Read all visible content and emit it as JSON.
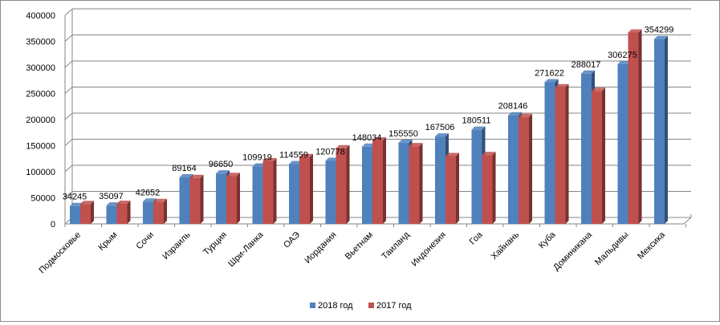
{
  "chart_data": {
    "type": "bar",
    "title": "",
    "xlabel": "",
    "ylabel": "",
    "ylim": [
      0,
      400000
    ],
    "y_ticks": [
      "0",
      "50000",
      "100000",
      "150000",
      "200000",
      "250000",
      "300000",
      "350000",
      "400000"
    ],
    "grid": true,
    "legend_position": "bottom",
    "categories": [
      "Подмосковье",
      "Крым",
      "Сочи",
      "Израиль",
      "Турция",
      "Шри-Ланка",
      "ОАЭ",
      "Иордания",
      "Вьетнам",
      "Таиланд",
      "Индонезия",
      "Гоа",
      "Хайнань",
      "Куба",
      "Доминикана",
      "Мальдивы",
      "Мексика"
    ],
    "series": [
      {
        "name": "2018 год",
        "color": "#4f81bd",
        "values": [
          34245,
          35097,
          42652,
          89164,
          96650,
          109919,
          114559,
          120778,
          148034,
          155550,
          167506,
          180511,
          208146,
          271622,
          288017,
          306275,
          354299
        ],
        "data_labels": [
          "34245",
          "35097",
          "42652",
          "89164",
          "96650",
          "109919",
          "114559",
          "120778",
          "148034",
          "155550",
          "167506",
          "180511",
          "208146",
          "271622",
          "288017",
          "306275",
          "354299"
        ]
      },
      {
        "name": "2017 год",
        "color": "#c0504d",
        "values": [
          38000,
          38500,
          42000,
          88000,
          92000,
          120000,
          128000,
          145000,
          160000,
          149000,
          130000,
          132000,
          205000,
          262000,
          255000,
          367000,
          null
        ]
      }
    ]
  }
}
